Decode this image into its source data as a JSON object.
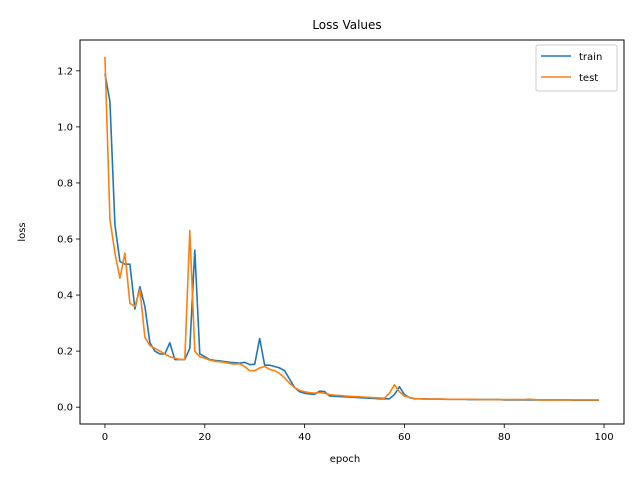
{
  "chart_data": {
    "type": "line",
    "title": "Loss Values",
    "xlabel": "epoch",
    "ylabel": "loss",
    "xlim": [
      -5,
      104
    ],
    "ylim": [
      -0.06,
      1.31
    ],
    "xticks": [
      0,
      20,
      40,
      60,
      80,
      100
    ],
    "yticks": [
      0.0,
      0.2,
      0.4,
      0.6,
      0.8,
      1.0,
      1.2
    ],
    "grid": false,
    "legend_position": "top-right",
    "series": [
      {
        "name": "train",
        "color": "#1f77b4",
        "x": [
          0,
          1,
          2,
          3,
          4,
          5,
          6,
          7,
          8,
          9,
          10,
          11,
          12,
          13,
          14,
          15,
          16,
          17,
          18,
          19,
          20,
          21,
          22,
          23,
          24,
          25,
          26,
          27,
          28,
          29,
          30,
          31,
          32,
          33,
          34,
          35,
          36,
          37,
          38,
          39,
          40,
          41,
          42,
          43,
          44,
          45,
          46,
          47,
          48,
          49,
          50,
          51,
          52,
          53,
          54,
          55,
          56,
          57,
          58,
          59,
          60,
          61,
          62,
          63,
          64,
          65,
          66,
          67,
          68,
          69,
          70,
          71,
          72,
          73,
          74,
          75,
          76,
          77,
          78,
          79,
          80,
          81,
          82,
          83,
          84,
          85,
          86,
          87,
          88,
          89,
          90,
          91,
          92,
          93,
          94,
          95,
          96,
          97,
          98,
          99
        ],
        "y": [
          1.19,
          1.09,
          0.65,
          0.52,
          0.51,
          0.51,
          0.35,
          0.43,
          0.36,
          0.23,
          0.2,
          0.19,
          0.19,
          0.23,
          0.17,
          0.17,
          0.17,
          0.21,
          0.56,
          0.19,
          0.18,
          0.17,
          0.167,
          0.165,
          0.163,
          0.16,
          0.159,
          0.157,
          0.16,
          0.152,
          0.153,
          0.245,
          0.15,
          0.15,
          0.145,
          0.14,
          0.13,
          0.1,
          0.07,
          0.055,
          0.05,
          0.047,
          0.046,
          0.057,
          0.056,
          0.04,
          0.039,
          0.038,
          0.037,
          0.036,
          0.035,
          0.034,
          0.033,
          0.032,
          0.031,
          0.03,
          0.03,
          0.03,
          0.045,
          0.073,
          0.045,
          0.034,
          0.03,
          0.03,
          0.03,
          0.029,
          0.029,
          0.029,
          0.028,
          0.028,
          0.028,
          0.028,
          0.028,
          0.027,
          0.027,
          0.027,
          0.027,
          0.027,
          0.027,
          0.027,
          0.026,
          0.026,
          0.026,
          0.026,
          0.026,
          0.026,
          0.026,
          0.026,
          0.026,
          0.026,
          0.026,
          0.026,
          0.026,
          0.026,
          0.025,
          0.025,
          0.025,
          0.025,
          0.025,
          0.025
        ]
      },
      {
        "name": "test",
        "color": "#ff7f0e",
        "x": [
          0,
          1,
          2,
          3,
          4,
          5,
          6,
          7,
          8,
          9,
          10,
          11,
          12,
          13,
          14,
          15,
          16,
          17,
          18,
          19,
          20,
          21,
          22,
          23,
          24,
          25,
          26,
          27,
          28,
          29,
          30,
          31,
          32,
          33,
          34,
          35,
          36,
          37,
          38,
          39,
          40,
          41,
          42,
          43,
          44,
          45,
          46,
          47,
          48,
          49,
          50,
          51,
          52,
          53,
          54,
          55,
          56,
          57,
          58,
          59,
          60,
          61,
          62,
          63,
          64,
          65,
          66,
          67,
          68,
          69,
          70,
          71,
          72,
          73,
          74,
          75,
          76,
          77,
          78,
          79,
          80,
          81,
          82,
          83,
          84,
          85,
          86,
          87,
          88,
          89,
          90,
          91,
          92,
          93,
          94,
          95,
          96,
          97,
          98,
          99
        ],
        "y": [
          1.25,
          0.67,
          0.55,
          0.46,
          0.55,
          0.37,
          0.36,
          0.42,
          0.25,
          0.22,
          0.21,
          0.2,
          0.19,
          0.18,
          0.175,
          0.17,
          0.17,
          0.63,
          0.2,
          0.18,
          0.175,
          0.168,
          0.164,
          0.162,
          0.16,
          0.156,
          0.154,
          0.155,
          0.145,
          0.13,
          0.13,
          0.14,
          0.145,
          0.135,
          0.13,
          0.12,
          0.105,
          0.085,
          0.07,
          0.06,
          0.055,
          0.052,
          0.05,
          0.052,
          0.05,
          0.045,
          0.043,
          0.042,
          0.04,
          0.039,
          0.038,
          0.037,
          0.036,
          0.035,
          0.034,
          0.033,
          0.032,
          0.05,
          0.08,
          0.055,
          0.04,
          0.035,
          0.031,
          0.03,
          0.029,
          0.029,
          0.029,
          0.029,
          0.029,
          0.028,
          0.028,
          0.028,
          0.028,
          0.028,
          0.028,
          0.027,
          0.027,
          0.027,
          0.027,
          0.027,
          0.027,
          0.027,
          0.027,
          0.027,
          0.027,
          0.028,
          0.027,
          0.026,
          0.026,
          0.026,
          0.026,
          0.026,
          0.026,
          0.026,
          0.026,
          0.026,
          0.026,
          0.026,
          0.026,
          0.026
        ]
      }
    ]
  }
}
